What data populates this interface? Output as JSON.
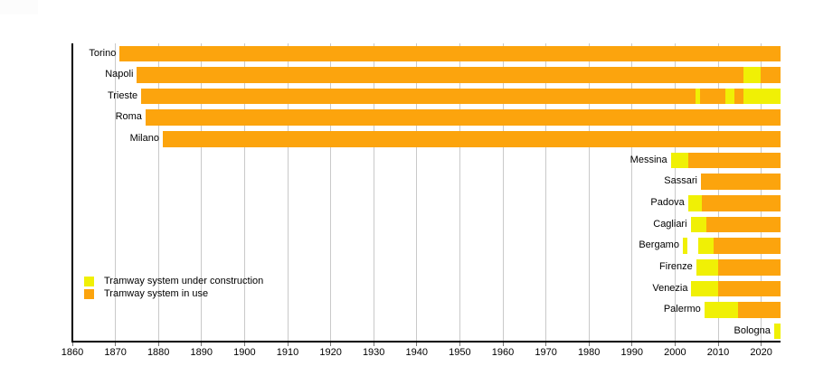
{
  "style": {
    "background": "#FFFFFF",
    "gridline_color": "#C9C9C9",
    "axis_color": "#000000",
    "tick_color": "#777777",
    "text_color": "#000000"
  },
  "chart_data": {
    "type": "bar",
    "subtype": "gantt-timeline",
    "title": "",
    "xlabel": "",
    "ylabel": "",
    "grid": true,
    "legend_position": "bottom-left",
    "xlim": [
      1860,
      2024.5
    ],
    "x_ticks": [
      1860,
      1870,
      1880,
      1890,
      1900,
      1910,
      1920,
      1930,
      1940,
      1950,
      1960,
      1970,
      1980,
      1990,
      2000,
      2010,
      2020
    ],
    "status_colors": {
      "in_use": "#FCA40D",
      "under_construction": "#F0F005"
    },
    "legend": [
      {
        "status": "under_construction",
        "label": "Tramway system under construction"
      },
      {
        "status": "in_use",
        "label": "Tramway system in use"
      }
    ],
    "rows": [
      {
        "city": "Torino",
        "segments": [
          {
            "from": 1871,
            "to": 2024.5,
            "status": "in_use"
          }
        ]
      },
      {
        "city": "Napoli",
        "segments": [
          {
            "from": 1875,
            "to": 2015.8,
            "status": "in_use"
          },
          {
            "from": 2015.8,
            "to": 2019.8,
            "status": "under_construction"
          },
          {
            "from": 2019.8,
            "to": 2024.5,
            "status": "in_use"
          }
        ]
      },
      {
        "city": "Trieste",
        "segments": [
          {
            "from": 1876,
            "to": 2004.7,
            "status": "in_use"
          },
          {
            "from": 2004.7,
            "to": 2005.8,
            "status": "under_construction"
          },
          {
            "from": 2005.8,
            "to": 2011.6,
            "status": "in_use"
          },
          {
            "from": 2011.6,
            "to": 2013.8,
            "status": "under_construction"
          },
          {
            "from": 2013.8,
            "to": 2015.8,
            "status": "in_use"
          },
          {
            "from": 2015.8,
            "to": 2024.5,
            "status": "under_construction"
          }
        ]
      },
      {
        "city": "Roma",
        "segments": [
          {
            "from": 1877,
            "to": 2024.5,
            "status": "in_use"
          }
        ]
      },
      {
        "city": "Milano",
        "segments": [
          {
            "from": 1881,
            "to": 2024.5,
            "status": "in_use"
          }
        ]
      },
      {
        "city": "Messina",
        "segments": [
          {
            "from": 1999,
            "to": 2003,
            "status": "under_construction"
          },
          {
            "from": 2003,
            "to": 2024.5,
            "status": "in_use"
          }
        ]
      },
      {
        "city": "Sassari",
        "segments": [
          {
            "from": 2006,
            "to": 2024.5,
            "status": "in_use"
          }
        ]
      },
      {
        "city": "Padova",
        "segments": [
          {
            "from": 2003,
            "to": 2006.2,
            "status": "under_construction"
          },
          {
            "from": 2006.2,
            "to": 2024.5,
            "status": "in_use"
          }
        ]
      },
      {
        "city": "Cagliari",
        "segments": [
          {
            "from": 2003.6,
            "to": 2007.2,
            "status": "under_construction"
          },
          {
            "from": 2007.2,
            "to": 2024.5,
            "status": "in_use"
          }
        ]
      },
      {
        "city": "Bergamo",
        "segments": [
          {
            "from": 2001.8,
            "to": 2002.8,
            "status": "under_construction"
          },
          {
            "from": 2005.4,
            "to": 2008.9,
            "status": "under_construction"
          },
          {
            "from": 2008.9,
            "to": 2024.5,
            "status": "in_use"
          }
        ]
      },
      {
        "city": "Firenze",
        "segments": [
          {
            "from": 2004.9,
            "to": 2010,
            "status": "under_construction"
          },
          {
            "from": 2010,
            "to": 2024.5,
            "status": "in_use"
          }
        ]
      },
      {
        "city": "Venezia",
        "segments": [
          {
            "from": 2003.8,
            "to": 2010,
            "status": "under_construction"
          },
          {
            "from": 2010,
            "to": 2024.5,
            "status": "in_use"
          }
        ]
      },
      {
        "city": "Palermo",
        "segments": [
          {
            "from": 2006.8,
            "to": 2014.7,
            "status": "under_construction"
          },
          {
            "from": 2014.7,
            "to": 2024.5,
            "status": "in_use"
          }
        ]
      },
      {
        "city": "Bologna",
        "segments": [
          {
            "from": 2023,
            "to": 2024.5,
            "status": "under_construction"
          }
        ]
      }
    ]
  }
}
